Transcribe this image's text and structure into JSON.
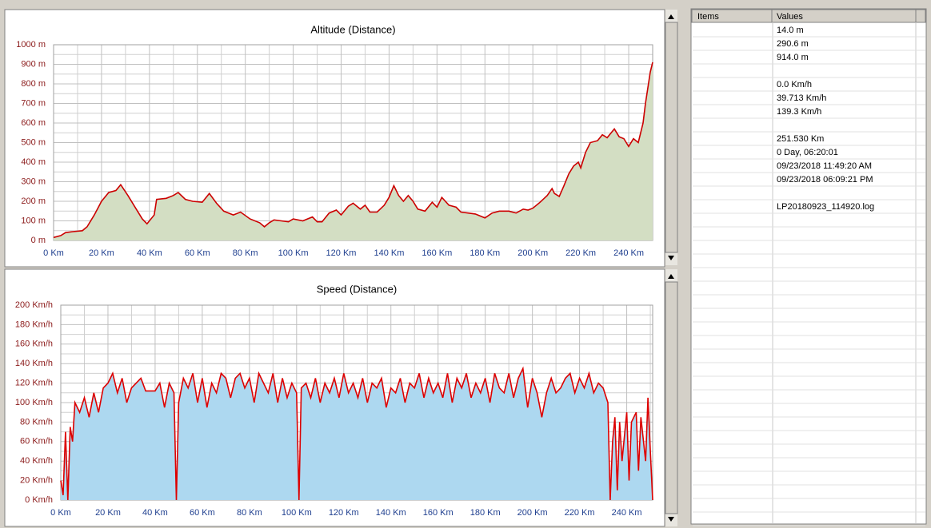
{
  "chart_data": [
    {
      "type": "area",
      "title": "Altitude (Distance)",
      "x": [
        0,
        3,
        5,
        8,
        12,
        14,
        17,
        20,
        23,
        26,
        28,
        31,
        34,
        37,
        39,
        42,
        43,
        47,
        50,
        52,
        55,
        58,
        62,
        65,
        68,
        71,
        75,
        78,
        82,
        86,
        88,
        90,
        92,
        95,
        98,
        100,
        104,
        108,
        110,
        112,
        115,
        118,
        120,
        123,
        125,
        128,
        130,
        132,
        135,
        138,
        140,
        142,
        144,
        146,
        148,
        150,
        152,
        155,
        158,
        160,
        162,
        165,
        168,
        170,
        173,
        176,
        180,
        183,
        186,
        190,
        193,
        196,
        198,
        200,
        203,
        206,
        208,
        209,
        211,
        213,
        215,
        217,
        219,
        220,
        222,
        224,
        227,
        229,
        231,
        234,
        236,
        238,
        240,
        242,
        244,
        246,
        247,
        248,
        249,
        250
      ],
      "series": [
        {
          "name": "Altitude",
          "color": "#cc0000",
          "fill": "#d3dec3",
          "values": [
            15,
            25,
            40,
            45,
            50,
            70,
            130,
            200,
            245,
            255,
            285,
            230,
            170,
            110,
            85,
            130,
            210,
            215,
            230,
            245,
            210,
            200,
            195,
            240,
            190,
            150,
            130,
            145,
            110,
            90,
            70,
            90,
            105,
            100,
            95,
            110,
            100,
            120,
            95,
            95,
            140,
            155,
            130,
            175,
            190,
            160,
            180,
            145,
            145,
            180,
            220,
            280,
            230,
            200,
            230,
            200,
            160,
            150,
            195,
            170,
            220,
            180,
            170,
            145,
            140,
            135,
            115,
            140,
            150,
            150,
            140,
            160,
            155,
            165,
            195,
            230,
            265,
            240,
            225,
            280,
            340,
            380,
            400,
            370,
            450,
            500,
            510,
            540,
            525,
            570,
            530,
            520,
            480,
            520,
            500,
            600,
            700,
            780,
            860,
            910
          ]
        }
      ],
      "xlim": [
        0,
        250
      ],
      "ylim": [
        0,
        1000
      ],
      "xticks": [
        {
          "value": 0,
          "label": "0 Km"
        },
        {
          "value": 20,
          "label": "20 Km"
        },
        {
          "value": 40,
          "label": "40 Km"
        },
        {
          "value": 60,
          "label": "60 Km"
        },
        {
          "value": 80,
          "label": "80 Km"
        },
        {
          "value": 100,
          "label": "100 Km"
        },
        {
          "value": 120,
          "label": "120 Km"
        },
        {
          "value": 140,
          "label": "140 Km"
        },
        {
          "value": 160,
          "label": "160 Km"
        },
        {
          "value": 180,
          "label": "180 Km"
        },
        {
          "value": 200,
          "label": "200 Km"
        },
        {
          "value": 220,
          "label": "220 Km"
        },
        {
          "value": 240,
          "label": "240 Km"
        }
      ],
      "yticks": [
        {
          "value": 0,
          "label": "0 m"
        },
        {
          "value": 100,
          "label": "100 m"
        },
        {
          "value": 200,
          "label": "200 m"
        },
        {
          "value": 300,
          "label": "300 m"
        },
        {
          "value": 400,
          "label": "400 m"
        },
        {
          "value": 500,
          "label": "500 m"
        },
        {
          "value": 600,
          "label": "600 m"
        },
        {
          "value": 700,
          "label": "700 m"
        },
        {
          "value": 800,
          "label": "800 m"
        },
        {
          "value": 900,
          "label": "900 m"
        },
        {
          "value": 1000,
          "label": "1000 m"
        }
      ],
      "grid": true
    },
    {
      "type": "area",
      "title": "Speed (Distance)",
      "x": [
        0,
        1,
        2,
        3,
        4,
        5,
        6,
        8,
        10,
        12,
        14,
        16,
        18,
        20,
        22,
        24,
        26,
        28,
        30,
        32,
        34,
        36,
        40,
        42,
        44,
        46,
        48,
        49,
        50,
        52,
        54,
        56,
        58,
        60,
        62,
        64,
        66,
        68,
        70,
        72,
        74,
        76,
        78,
        80,
        82,
        84,
        86,
        88,
        90,
        92,
        94,
        96,
        98,
        100,
        101,
        102,
        104,
        106,
        108,
        110,
        112,
        114,
        116,
        118,
        120,
        122,
        124,
        126,
        128,
        130,
        132,
        134,
        136,
        138,
        140,
        142,
        144,
        146,
        148,
        150,
        152,
        154,
        156,
        158,
        160,
        162,
        164,
        166,
        168,
        170,
        172,
        174,
        176,
        178,
        180,
        182,
        184,
        186,
        188,
        190,
        192,
        194,
        196,
        198,
        200,
        202,
        204,
        206,
        208,
        210,
        212,
        214,
        216,
        218,
        220,
        222,
        224,
        226,
        228,
        230,
        232,
        233,
        234,
        235,
        236,
        237,
        238,
        240,
        241,
        242,
        244,
        245,
        246,
        248,
        249,
        250,
        251
      ],
      "series": [
        {
          "name": "Speed",
          "color": "#dd0000",
          "fill": "#add8f0",
          "values": [
            20,
            5,
            70,
            0,
            75,
            60,
            100,
            90,
            105,
            85,
            110,
            90,
            115,
            120,
            130,
            110,
            125,
            100,
            115,
            120,
            125,
            112,
            112,
            120,
            95,
            120,
            110,
            0,
            100,
            125,
            115,
            130,
            100,
            125,
            95,
            120,
            110,
            130,
            125,
            105,
            125,
            130,
            115,
            125,
            100,
            130,
            120,
            110,
            130,
            100,
            125,
            105,
            120,
            110,
            0,
            115,
            120,
            105,
            125,
            100,
            120,
            110,
            125,
            105,
            130,
            110,
            120,
            105,
            125,
            100,
            120,
            115,
            125,
            95,
            115,
            110,
            125,
            100,
            120,
            115,
            130,
            105,
            125,
            110,
            120,
            105,
            130,
            100,
            125,
            115,
            130,
            105,
            120,
            110,
            125,
            100,
            130,
            115,
            110,
            130,
            105,
            125,
            135,
            95,
            125,
            110,
            85,
            110,
            125,
            110,
            115,
            125,
            130,
            110,
            125,
            115,
            130,
            110,
            120,
            115,
            100,
            0,
            60,
            85,
            10,
            80,
            40,
            90,
            20,
            80,
            90,
            30,
            85,
            40,
            105,
            50,
            0
          ]
        }
      ],
      "xlim": [
        0,
        251
      ],
      "ylim": [
        0,
        200
      ],
      "xticks": [
        {
          "value": 0,
          "label": "0 Km"
        },
        {
          "value": 20,
          "label": "20 Km"
        },
        {
          "value": 40,
          "label": "40 Km"
        },
        {
          "value": 60,
          "label": "60 Km"
        },
        {
          "value": 80,
          "label": "80 Km"
        },
        {
          "value": 100,
          "label": "100 Km"
        },
        {
          "value": 120,
          "label": "120 Km"
        },
        {
          "value": 140,
          "label": "140 Km"
        },
        {
          "value": 160,
          "label": "160 Km"
        },
        {
          "value": 180,
          "label": "180 Km"
        },
        {
          "value": 200,
          "label": "200 Km"
        },
        {
          "value": 220,
          "label": "220 Km"
        },
        {
          "value": 240,
          "label": "240 Km"
        }
      ],
      "yticks": [
        {
          "value": 0,
          "label": "0 Km/h"
        },
        {
          "value": 20,
          "label": "20 Km/h"
        },
        {
          "value": 40,
          "label": "40 Km/h"
        },
        {
          "value": 60,
          "label": "60 Km/h"
        },
        {
          "value": 80,
          "label": "80 Km/h"
        },
        {
          "value": 100,
          "label": "100 Km/h"
        },
        {
          "value": 120,
          "label": "120 Km/h"
        },
        {
          "value": 140,
          "label": "140 Km/h"
        },
        {
          "value": 160,
          "label": "160 Km/h"
        },
        {
          "value": 180,
          "label": "180 Km/h"
        },
        {
          "value": 200,
          "label": "200 Km/h"
        }
      ],
      "grid": true
    }
  ],
  "table": {
    "columns": [
      "Items",
      "Values"
    ],
    "values": [
      "14.0 m",
      "290.6 m",
      "914.0 m",
      null,
      "0.0 Km/h",
      "39.713 Km/h",
      "139.3 Km/h",
      null,
      "251.530 Km",
      "0 Day, 06:20:01",
      "09/23/2018 11:49:20 AM",
      "09/23/2018 06:09:21 PM",
      null,
      "LP20180923_114920.log"
    ]
  }
}
